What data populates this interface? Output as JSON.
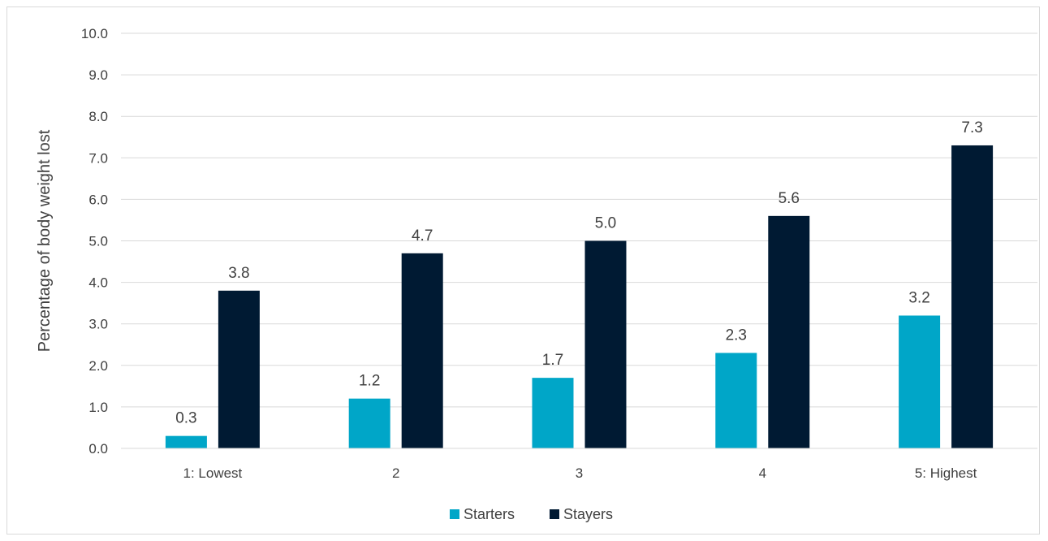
{
  "chart_data": {
    "type": "bar",
    "title": "",
    "xlabel": "",
    "ylabel": "Percentage of body weight lost",
    "ylim": [
      0,
      10
    ],
    "ytick_step": 1,
    "ytick_labels": [
      "0.0",
      "1.0",
      "2.0",
      "3.0",
      "4.0",
      "5.0",
      "6.0",
      "7.0",
      "8.0",
      "9.0",
      "10.0"
    ],
    "categories": [
      "1: Lowest",
      "2",
      "3",
      "4",
      "5: Highest"
    ],
    "series": [
      {
        "name": "Starters",
        "color": "#00a6c8",
        "values": [
          0.3,
          1.2,
          1.7,
          2.3,
          3.2
        ],
        "labels": [
          "0.3",
          "1.2",
          "1.7",
          "2.3",
          "3.2"
        ]
      },
      {
        "name": "Stayers",
        "color": "#001a33",
        "values": [
          3.8,
          4.7,
          5.0,
          5.6,
          7.3
        ],
        "labels": [
          "3.8",
          "4.7",
          "5.0",
          "5.6",
          "7.3"
        ]
      }
    ],
    "grid": true,
    "legend": "bottom-center"
  }
}
